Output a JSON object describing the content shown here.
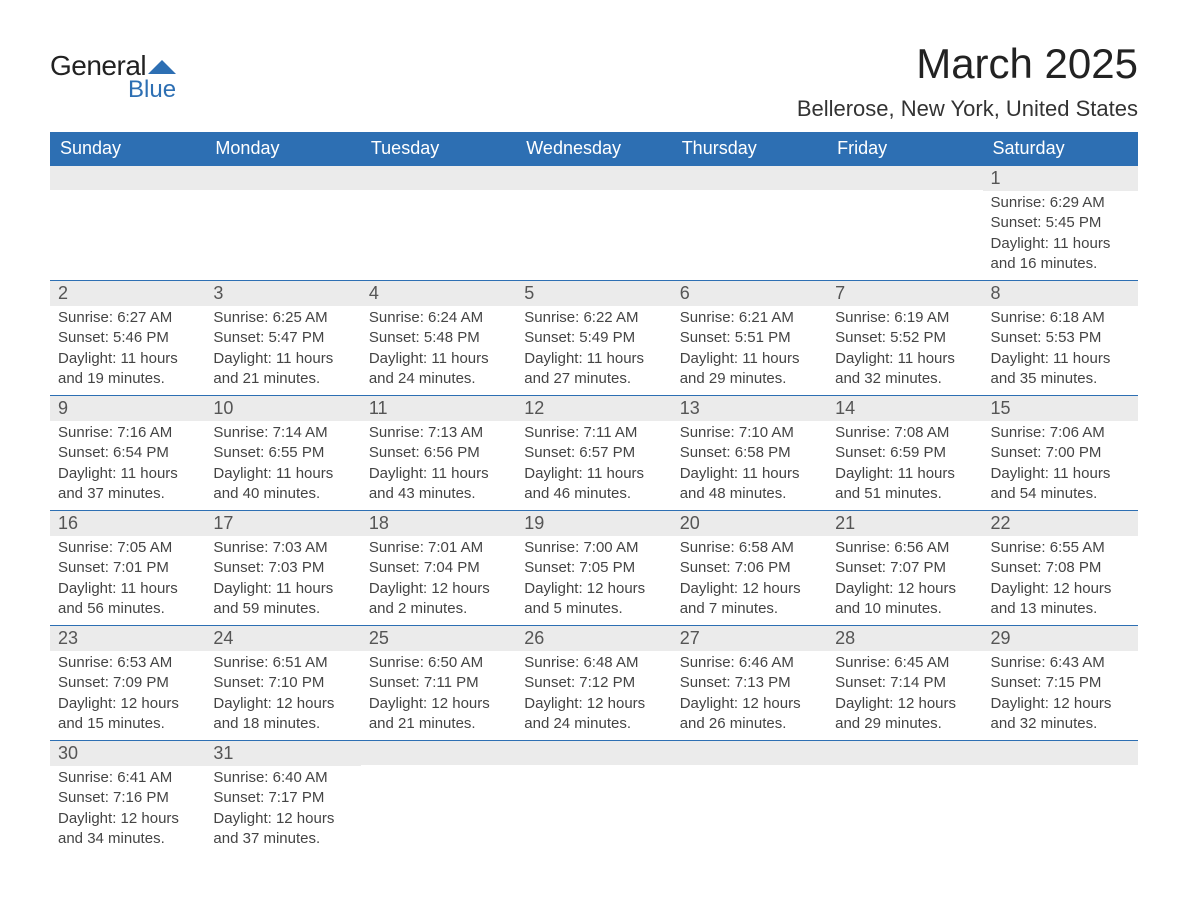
{
  "logo": {
    "top": "General",
    "bottom": "Blue",
    "icon_color": "#2d6fb3"
  },
  "title": "March 2025",
  "location": "Bellerose, New York, United States",
  "header_bg": "#2d6fb3",
  "band_bg": "#ebebeb",
  "text_color": "#444444",
  "weekdays": [
    "Sunday",
    "Monday",
    "Tuesday",
    "Wednesday",
    "Thursday",
    "Friday",
    "Saturday"
  ],
  "weeks": [
    [
      null,
      null,
      null,
      null,
      null,
      null,
      {
        "n": "1",
        "sunrise": "6:29 AM",
        "sunset": "5:45 PM",
        "daylight": "11 hours and 16 minutes."
      }
    ],
    [
      {
        "n": "2",
        "sunrise": "6:27 AM",
        "sunset": "5:46 PM",
        "daylight": "11 hours and 19 minutes."
      },
      {
        "n": "3",
        "sunrise": "6:25 AM",
        "sunset": "5:47 PM",
        "daylight": "11 hours and 21 minutes."
      },
      {
        "n": "4",
        "sunrise": "6:24 AM",
        "sunset": "5:48 PM",
        "daylight": "11 hours and 24 minutes."
      },
      {
        "n": "5",
        "sunrise": "6:22 AM",
        "sunset": "5:49 PM",
        "daylight": "11 hours and 27 minutes."
      },
      {
        "n": "6",
        "sunrise": "6:21 AM",
        "sunset": "5:51 PM",
        "daylight": "11 hours and 29 minutes."
      },
      {
        "n": "7",
        "sunrise": "6:19 AM",
        "sunset": "5:52 PM",
        "daylight": "11 hours and 32 minutes."
      },
      {
        "n": "8",
        "sunrise": "6:18 AM",
        "sunset": "5:53 PM",
        "daylight": "11 hours and 35 minutes."
      }
    ],
    [
      {
        "n": "9",
        "sunrise": "7:16 AM",
        "sunset": "6:54 PM",
        "daylight": "11 hours and 37 minutes."
      },
      {
        "n": "10",
        "sunrise": "7:14 AM",
        "sunset": "6:55 PM",
        "daylight": "11 hours and 40 minutes."
      },
      {
        "n": "11",
        "sunrise": "7:13 AM",
        "sunset": "6:56 PM",
        "daylight": "11 hours and 43 minutes."
      },
      {
        "n": "12",
        "sunrise": "7:11 AM",
        "sunset": "6:57 PM",
        "daylight": "11 hours and 46 minutes."
      },
      {
        "n": "13",
        "sunrise": "7:10 AM",
        "sunset": "6:58 PM",
        "daylight": "11 hours and 48 minutes."
      },
      {
        "n": "14",
        "sunrise": "7:08 AM",
        "sunset": "6:59 PM",
        "daylight": "11 hours and 51 minutes."
      },
      {
        "n": "15",
        "sunrise": "7:06 AM",
        "sunset": "7:00 PM",
        "daylight": "11 hours and 54 minutes."
      }
    ],
    [
      {
        "n": "16",
        "sunrise": "7:05 AM",
        "sunset": "7:01 PM",
        "daylight": "11 hours and 56 minutes."
      },
      {
        "n": "17",
        "sunrise": "7:03 AM",
        "sunset": "7:03 PM",
        "daylight": "11 hours and 59 minutes."
      },
      {
        "n": "18",
        "sunrise": "7:01 AM",
        "sunset": "7:04 PM",
        "daylight": "12 hours and 2 minutes."
      },
      {
        "n": "19",
        "sunrise": "7:00 AM",
        "sunset": "7:05 PM",
        "daylight": "12 hours and 5 minutes."
      },
      {
        "n": "20",
        "sunrise": "6:58 AM",
        "sunset": "7:06 PM",
        "daylight": "12 hours and 7 minutes."
      },
      {
        "n": "21",
        "sunrise": "6:56 AM",
        "sunset": "7:07 PM",
        "daylight": "12 hours and 10 minutes."
      },
      {
        "n": "22",
        "sunrise": "6:55 AM",
        "sunset": "7:08 PM",
        "daylight": "12 hours and 13 minutes."
      }
    ],
    [
      {
        "n": "23",
        "sunrise": "6:53 AM",
        "sunset": "7:09 PM",
        "daylight": "12 hours and 15 minutes."
      },
      {
        "n": "24",
        "sunrise": "6:51 AM",
        "sunset": "7:10 PM",
        "daylight": "12 hours and 18 minutes."
      },
      {
        "n": "25",
        "sunrise": "6:50 AM",
        "sunset": "7:11 PM",
        "daylight": "12 hours and 21 minutes."
      },
      {
        "n": "26",
        "sunrise": "6:48 AM",
        "sunset": "7:12 PM",
        "daylight": "12 hours and 24 minutes."
      },
      {
        "n": "27",
        "sunrise": "6:46 AM",
        "sunset": "7:13 PM",
        "daylight": "12 hours and 26 minutes."
      },
      {
        "n": "28",
        "sunrise": "6:45 AM",
        "sunset": "7:14 PM",
        "daylight": "12 hours and 29 minutes."
      },
      {
        "n": "29",
        "sunrise": "6:43 AM",
        "sunset": "7:15 PM",
        "daylight": "12 hours and 32 minutes."
      }
    ],
    [
      {
        "n": "30",
        "sunrise": "6:41 AM",
        "sunset": "7:16 PM",
        "daylight": "12 hours and 34 minutes."
      },
      {
        "n": "31",
        "sunrise": "6:40 AM",
        "sunset": "7:17 PM",
        "daylight": "12 hours and 37 minutes."
      },
      null,
      null,
      null,
      null,
      null
    ]
  ],
  "labels": {
    "sunrise": "Sunrise:",
    "sunset": "Sunset:",
    "daylight": "Daylight:"
  }
}
